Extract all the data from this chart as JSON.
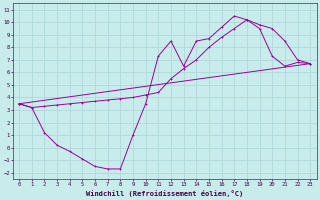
{
  "xlabel": "Windchill (Refroidissement éolien,°C)",
  "bg_color": "#c8ecec",
  "grid_color": "#b0d8d8",
  "line_color": "#990099",
  "xlim": [
    -0.5,
    23.5
  ],
  "ylim": [
    -2.5,
    11.5
  ],
  "xticks": [
    0,
    1,
    2,
    3,
    4,
    5,
    6,
    7,
    8,
    9,
    10,
    11,
    12,
    13,
    14,
    15,
    16,
    17,
    18,
    19,
    20,
    21,
    22,
    23
  ],
  "yticks": [
    -2,
    -1,
    0,
    1,
    2,
    3,
    4,
    5,
    6,
    7,
    8,
    9,
    10,
    11
  ],
  "line1_x": [
    0,
    1,
    2,
    3,
    4,
    5,
    6,
    7,
    8,
    9,
    10,
    11,
    12,
    13,
    14,
    15,
    16,
    17,
    18,
    19,
    20,
    21,
    22,
    23
  ],
  "line1_y": [
    3.5,
    3.2,
    1.2,
    0.2,
    -0.3,
    -0.9,
    -1.5,
    -1.7,
    -1.7,
    1.0,
    3.5,
    7.3,
    8.5,
    6.5,
    8.5,
    8.7,
    9.6,
    10.5,
    10.2,
    9.5,
    7.3,
    6.5,
    6.8,
    6.7
  ],
  "line2_x": [
    0,
    1,
    2,
    3,
    4,
    5,
    6,
    7,
    8,
    9,
    10,
    11,
    12,
    13,
    14,
    15,
    16,
    17,
    18,
    19,
    20,
    21,
    22,
    23
  ],
  "line2_y": [
    3.5,
    3.2,
    3.3,
    3.4,
    3.5,
    3.6,
    3.7,
    3.8,
    3.9,
    4.0,
    4.2,
    4.4,
    5.5,
    6.3,
    7.0,
    8.0,
    8.8,
    9.5,
    10.2,
    9.8,
    9.5,
    8.5,
    7.0,
    6.7
  ],
  "line3_x": [
    0,
    23
  ],
  "line3_y": [
    3.5,
    6.7
  ]
}
